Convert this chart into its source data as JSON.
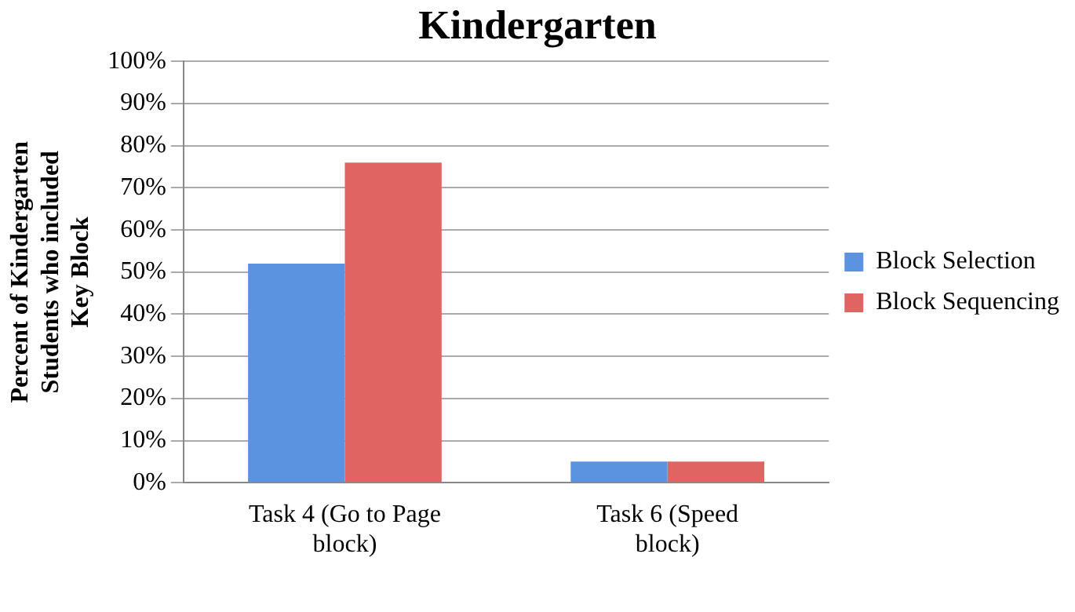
{
  "chart_data": {
    "type": "bar",
    "title": "Kindergarten",
    "ylabel": "Percent of Kindergarten Students who included Key Block",
    "categories": [
      "Task 4 (Go to Page block)",
      "Task 6 (Speed block)"
    ],
    "series": [
      {
        "name": "Block Selection",
        "color": "#5b93e0",
        "values": [
          52,
          5
        ]
      },
      {
        "name": "Block Sequencing",
        "color": "#e06462",
        "values": [
          76,
          5
        ]
      }
    ],
    "ylim": [
      0,
      100
    ],
    "yticks": [
      {
        "value": 0,
        "label": "0%"
      },
      {
        "value": 10,
        "label": "10%"
      },
      {
        "value": 20,
        "label": "20%"
      },
      {
        "value": 30,
        "label": "30%"
      },
      {
        "value": 40,
        "label": "40%"
      },
      {
        "value": 50,
        "label": "50%"
      },
      {
        "value": 60,
        "label": "60%"
      },
      {
        "value": 70,
        "label": "70%"
      },
      {
        "value": 80,
        "label": "80%"
      },
      {
        "value": 90,
        "label": "90%"
      },
      {
        "value": 100,
        "label": "100%"
      }
    ],
    "grid": "y",
    "legend": "right"
  }
}
